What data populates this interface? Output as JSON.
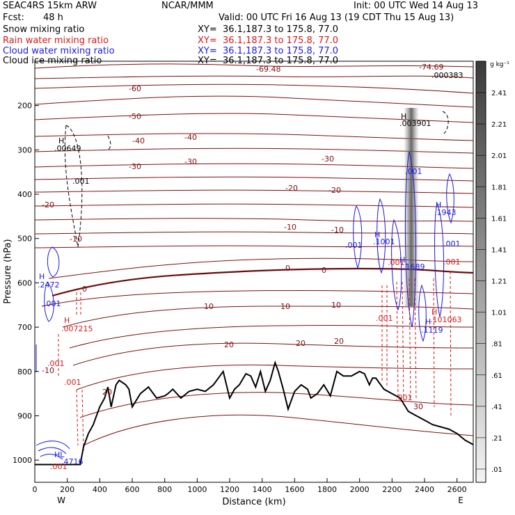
{
  "header": {
    "model": "SEAC4RS 15km ARW",
    "org": "NCAR/MMM",
    "init": "Init: 00 UTC Wed 14 Aug 13",
    "fcst_label": "Fcst:",
    "fcst_value": "48 h",
    "valid": "Valid: 00 UTC Fri 16 Aug 13 (19 CDT Thu 15 Aug 13)"
  },
  "legend": [
    {
      "label": "Snow mixing ratio",
      "xy": "XY=  36.1,187.3 to 175.8, 77.0",
      "color": "#000000"
    },
    {
      "label": "Rain water mixing ratio",
      "xy": "XY=  36.1,187.3 to 175.8, 77.0",
      "color": "#d41a1a"
    },
    {
      "label": "Cloud water mixing ratio",
      "xy": "XY=  36.1,187.3 to 175.8, 77.0",
      "color": "#1a1adc"
    },
    {
      "label": "Cloud ice mixing ratio",
      "xy": "XY=  36.1,187.3 to 175.8, 77.0",
      "color": "#000000"
    }
  ],
  "chart_data": {
    "type": "cross-section",
    "xlabel": "Distance (km)",
    "ylabel": "Pressure (hPa)",
    "xlim": [
      0,
      2700
    ],
    "ylim": [
      1050,
      100
    ],
    "x_ticks": [
      "0",
      "200",
      "400",
      "600",
      "800",
      "1000",
      "1200",
      "1400",
      "1600",
      "1800",
      "2000",
      "2200",
      "2400",
      "2600"
    ],
    "y_ticks": [
      "200",
      "300",
      "400",
      "500",
      "600",
      "700",
      "800",
      "900",
      "1000"
    ],
    "x_end_labels": {
      "left": "W",
      "right": "E"
    },
    "terrain": {
      "x": [
        0,
        280,
        300,
        330,
        360,
        400,
        430,
        450,
        470,
        500,
        520,
        560,
        580,
        600,
        650,
        700,
        750,
        800,
        820,
        850,
        900,
        950,
        1000,
        1050,
        1100,
        1130,
        1160,
        1200,
        1230,
        1260,
        1300,
        1330,
        1360,
        1390,
        1420,
        1450,
        1480,
        1500,
        1530,
        1560,
        1600,
        1640,
        1680,
        1700,
        1740,
        1780,
        1820,
        1860,
        1900,
        1950,
        2000,
        2030,
        2060,
        2080,
        2100,
        2150,
        2200,
        2250,
        2300,
        2350,
        2400,
        2450,
        2500,
        2550,
        2600,
        2650,
        2700
      ],
      "p": [
        1010,
        1010,
        970,
        940,
        920,
        880,
        860,
        835,
        880,
        830,
        820,
        830,
        840,
        880,
        850,
        835,
        860,
        855,
        850,
        840,
        860,
        845,
        840,
        845,
        830,
        815,
        800,
        860,
        840,
        830,
        805,
        810,
        835,
        800,
        845,
        820,
        780,
        800,
        840,
        885,
        845,
        830,
        840,
        860,
        850,
        830,
        855,
        800,
        810,
        810,
        800,
        805,
        830,
        815,
        815,
        840,
        850,
        860,
        890,
        900,
        910,
        920,
        925,
        930,
        940,
        955,
        965
      ]
    },
    "temperature_contours_C": [
      "-69.48",
      "-74.69",
      "-60",
      "-50",
      "-40",
      "-30",
      "-20",
      "-10",
      "0",
      "10",
      "20",
      "30"
    ],
    "annotations": [
      {
        "text": "H",
        "color": "#000000"
      },
      {
        "text": ".00649",
        "color": "#000000"
      },
      {
        "text": ".001",
        "color": "#000000"
      },
      {
        "text": ".000383",
        "color": "#000000"
      },
      {
        "text": "H",
        "color": "#000000"
      },
      {
        "text": ".003901",
        "color": "#000000"
      },
      {
        "text": "H",
        "color": "#1a1adc"
      },
      {
        "text": ".2472",
        "color": "#1a1adc"
      },
      {
        "text": ".001",
        "color": "#1a1adc"
      },
      {
        "text": "H",
        "color": "#d41a1a"
      },
      {
        "text": ".007215",
        "color": "#d41a1a"
      },
      {
        "text": ".001",
        "color": "#d41a1a"
      },
      {
        "text": ".001",
        "color": "#d41a1a"
      },
      {
        "text": "H",
        "color": "#1a1adc"
      },
      {
        "text": ".1001",
        "color": "#1a1adc"
      },
      {
        "text": ".001",
        "color": "#1a1adc"
      },
      {
        "text": "H",
        "color": "#1a1adc"
      },
      {
        "text": ".1689",
        "color": "#1a1adc"
      },
      {
        "text": ".001",
        "color": "#1a1adc"
      },
      {
        "text": "H",
        "color": "#1a1adc"
      },
      {
        "text": ".1943",
        "color": "#1a1adc"
      },
      {
        "text": ".001",
        "color": "#1a1adc"
      },
      {
        "text": ".001",
        "color": "#d41a1a"
      },
      {
        "text": ".001",
        "color": "#d41a1a"
      },
      {
        "text": "H",
        "color": "#d41a1a"
      },
      {
        "text": ".101063",
        "color": "#d41a1a"
      },
      {
        "text": "H",
        "color": "#1a1adc"
      },
      {
        "text": ".1119",
        "color": "#1a1adc"
      },
      {
        "text": ".001",
        "color": "#d41a1a"
      },
      {
        "text": ".001",
        "color": "#d41a1a"
      },
      {
        "text": "HL",
        "color": "#1a1adc"
      },
      {
        "text": ".4716",
        "color": "#1a1adc"
      },
      {
        "text": ".001",
        "color": "#d41a1a"
      }
    ],
    "colorbar": {
      "unit": "g kg⁻¹",
      "labels": [
        "2.41",
        "2.21",
        "2.01",
        "1.81",
        "1.61",
        "1.41",
        "1.21",
        "1.01",
        ".81",
        ".61",
        ".41",
        ".21",
        ".01"
      ]
    }
  }
}
